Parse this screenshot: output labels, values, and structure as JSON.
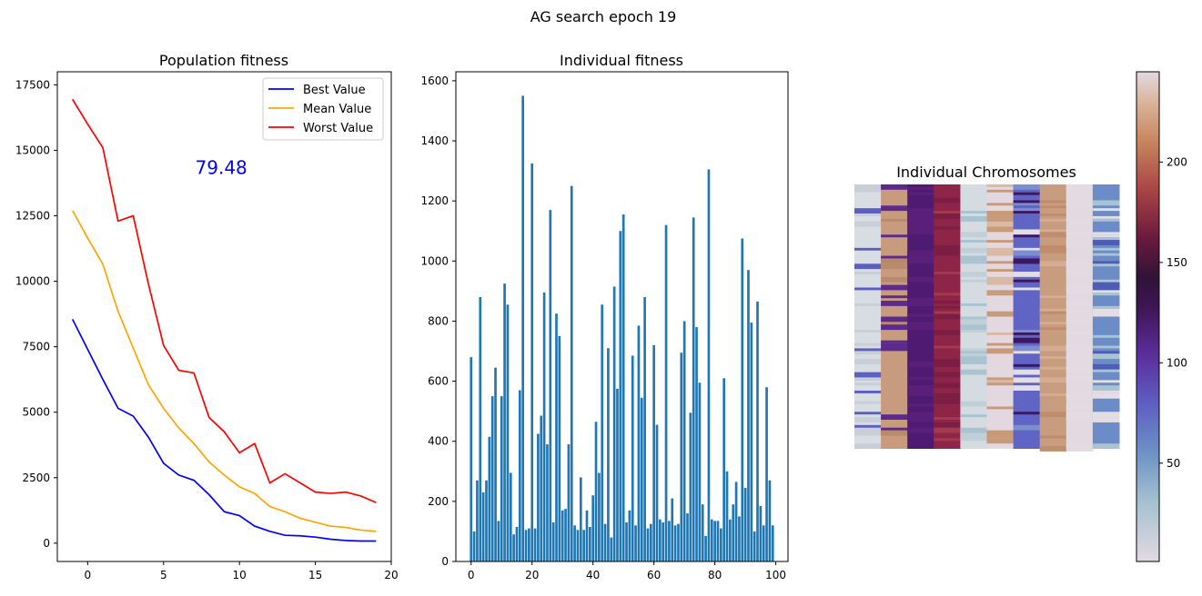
{
  "figure": {
    "suptitle": "AG search epoch 19"
  },
  "chart_data": [
    {
      "type": "line",
      "title": "Population fitness",
      "xlabel": "",
      "ylabel": "",
      "xlim": [
        -2,
        20
      ],
      "ylim": [
        -700,
        18000
      ],
      "xticks": [
        0,
        5,
        10,
        15,
        20
      ],
      "yticks": [
        0,
        2500,
        5000,
        7500,
        10000,
        12500,
        15000,
        17500
      ],
      "x": [
        -1,
        0,
        1,
        2,
        3,
        4,
        5,
        6,
        7,
        8,
        9,
        10,
        11,
        12,
        13,
        14,
        15,
        16,
        17,
        18,
        19
      ],
      "series": [
        {
          "name": "Best Value",
          "color": "#0000ff",
          "values": [
            8550,
            7400,
            6250,
            5150,
            4850,
            4050,
            3050,
            2600,
            2400,
            1850,
            1200,
            1050,
            650,
            450,
            300,
            280,
            230,
            150,
            100,
            80,
            80
          ]
        },
        {
          "name": "Mean Value",
          "color": "#ffa500",
          "values": [
            12700,
            11650,
            10650,
            8850,
            7450,
            6050,
            5150,
            4400,
            3800,
            3100,
            2600,
            2150,
            1900,
            1400,
            1200,
            950,
            800,
            650,
            600,
            500,
            450
          ]
        },
        {
          "name": "Worst Value",
          "color": "#ff0000",
          "values": [
            16950,
            16000,
            15100,
            12300,
            12500,
            9900,
            7550,
            6600,
            6500,
            4800,
            4250,
            3450,
            3800,
            2300,
            2650,
            2300,
            1950,
            1900,
            1950,
            1800,
            1550
          ]
        }
      ],
      "legend": "top-right",
      "annotation": {
        "text": "79.48",
        "x": 8.8,
        "y": 14100,
        "color": "#0000ff"
      }
    },
    {
      "type": "bar",
      "title": "Individual fitness",
      "xlabel": "",
      "ylabel": "",
      "xlim": [
        -5,
        104
      ],
      "ylim": [
        0,
        1630
      ],
      "xticks": [
        0,
        20,
        40,
        60,
        80,
        100
      ],
      "yticks": [
        0,
        200,
        400,
        600,
        800,
        1000,
        1200,
        1400,
        1600
      ],
      "bar_color": "#1f77b4",
      "values": [
        680,
        100,
        270,
        880,
        230,
        270,
        415,
        550,
        645,
        135,
        550,
        925,
        855,
        295,
        90,
        115,
        570,
        1550,
        105,
        110,
        1325,
        110,
        425,
        485,
        895,
        390,
        1170,
        130,
        825,
        750,
        170,
        175,
        390,
        1250,
        120,
        105,
        280,
        105,
        170,
        115,
        220,
        465,
        295,
        855,
        125,
        710,
        80,
        915,
        575,
        1100,
        1155,
        130,
        170,
        685,
        120,
        785,
        545,
        880,
        110,
        125,
        720,
        455,
        140,
        130,
        1120,
        135,
        210,
        120,
        125,
        695,
        800,
        160,
        495,
        1145,
        780,
        595,
        190,
        85,
        1305,
        140,
        135,
        135,
        110,
        610,
        300,
        140,
        190,
        265,
        150,
        1075,
        245,
        970,
        795,
        100,
        865,
        185,
        120,
        580,
        270,
        120
      ]
    },
    {
      "type": "heatmap",
      "title": "Individual Chromosomes",
      "colorbar": {
        "min": 1,
        "max": 245,
        "ticks": [
          50,
          100,
          150,
          200
        ],
        "colormap": "twilight"
      }
    }
  ]
}
